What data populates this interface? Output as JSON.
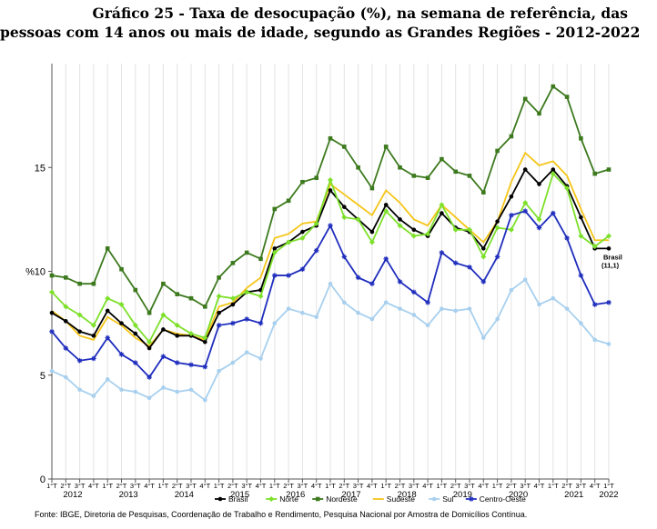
{
  "title_line1": "Gráfico 25 - Taxa de desocupação (%), na semana de referência, das",
  "title_line2": "pessoas com 14 anos ou mais de idade, segundo as Grandes Regiões - 2012-2022",
  "source": "Fonte: IBGE, Diretoria de Pesquisas, Coordenação de Trabalho e Rendimento, Pesquisa Nacional por Amostra de Domicílios Contínua.",
  "chart_data": {
    "type": "line",
    "ylabel": "%",
    "ylim": [
      0,
      20
    ],
    "yticks": [
      0,
      5,
      10,
      15
    ],
    "grid": "vertical",
    "legend_position": "bottom",
    "quarter_labels": [
      "1°T",
      "2°T",
      "3°T",
      "4°T"
    ],
    "years": [
      "2012",
      "2013",
      "2014",
      "2015",
      "2016",
      "2017",
      "2018",
      "2019",
      "2020",
      "2021",
      "2022"
    ],
    "annotation": {
      "line1": "Brasil",
      "line2": "(11,1)",
      "series": "Brasil",
      "index": 40
    },
    "series": [
      {
        "name": "Nordeste",
        "color": "#3d7a1e",
        "marker": "square",
        "values": [
          9.8,
          9.7,
          9.4,
          9.4,
          11.1,
          10.1,
          9.1,
          8.0,
          9.4,
          8.9,
          8.7,
          8.3,
          9.7,
          10.4,
          10.9,
          10.6,
          13.0,
          13.4,
          14.3,
          14.5,
          16.4,
          16.0,
          15.0,
          14.0,
          16.0,
          15.0,
          14.6,
          14.5,
          15.4,
          14.8,
          14.6,
          13.8,
          15.8,
          16.5,
          18.3,
          17.6,
          18.9,
          18.4,
          16.4,
          14.7,
          14.9
        ]
      },
      {
        "name": "Sudeste",
        "color": "#f5c518",
        "marker": "none",
        "values": [
          8.1,
          7.6,
          6.9,
          6.7,
          7.8,
          7.4,
          6.8,
          6.4,
          7.2,
          7.0,
          6.9,
          6.7,
          8.3,
          8.5,
          9.2,
          9.7,
          11.6,
          11.8,
          12.3,
          12.4,
          14.2,
          13.7,
          13.2,
          12.7,
          13.9,
          13.3,
          12.5,
          12.2,
          13.2,
          12.6,
          12.0,
          11.4,
          12.4,
          14.3,
          15.7,
          15.1,
          15.3,
          14.6,
          13.0,
          11.5,
          11.5
        ]
      },
      {
        "name": "Brasil",
        "color": "#000000",
        "marker": "circle",
        "values": [
          8.0,
          7.6,
          7.1,
          6.9,
          8.1,
          7.5,
          7.0,
          6.3,
          7.2,
          6.9,
          6.9,
          6.6,
          8.0,
          8.4,
          9.0,
          9.1,
          11.1,
          11.4,
          11.9,
          12.2,
          13.9,
          13.1,
          12.5,
          11.9,
          13.2,
          12.5,
          12.0,
          11.7,
          12.8,
          12.1,
          11.9,
          11.1,
          12.4,
          13.6,
          14.9,
          14.2,
          14.9,
          14.1,
          12.6,
          11.1,
          11.1
        ]
      },
      {
        "name": "Norte",
        "color": "#7de02a",
        "marker": "diamond",
        "values": [
          9.0,
          8.3,
          7.9,
          7.4,
          8.7,
          8.4,
          7.4,
          6.6,
          7.9,
          7.4,
          7.0,
          6.8,
          8.8,
          8.7,
          9.0,
          8.8,
          10.9,
          11.4,
          11.6,
          12.3,
          14.4,
          12.6,
          12.5,
          11.4,
          12.9,
          12.2,
          11.7,
          11.8,
          13.2,
          12.0,
          12.0,
          10.7,
          12.1,
          12.0,
          13.3,
          12.5,
          14.7,
          14.0,
          11.7,
          11.2,
          11.7
        ]
      },
      {
        "name": "Centro-Oeste",
        "color": "#1f2dbd",
        "marker": "asterisk",
        "values": [
          7.1,
          6.3,
          5.7,
          5.8,
          6.8,
          6.0,
          5.6,
          4.9,
          5.9,
          5.6,
          5.5,
          5.4,
          7.4,
          7.5,
          7.7,
          7.5,
          9.8,
          9.8,
          10.1,
          11.0,
          12.2,
          10.7,
          9.7,
          9.4,
          10.6,
          9.5,
          9.0,
          8.5,
          10.9,
          10.4,
          10.2,
          9.5,
          10.7,
          12.7,
          12.9,
          12.1,
          12.8,
          11.6,
          9.8,
          8.4,
          8.5
        ]
      },
      {
        "name": "Sul",
        "color": "#a8d0ee",
        "marker": "circle",
        "values": [
          5.2,
          4.9,
          4.3,
          4.0,
          4.8,
          4.3,
          4.2,
          3.9,
          4.4,
          4.2,
          4.3,
          3.8,
          5.2,
          5.6,
          6.1,
          5.8,
          7.5,
          8.2,
          8.0,
          7.8,
          9.4,
          8.5,
          8.0,
          7.7,
          8.5,
          8.2,
          7.9,
          7.4,
          8.2,
          8.1,
          8.2,
          6.8,
          7.7,
          9.1,
          9.6,
          8.4,
          8.7,
          8.2,
          7.5,
          6.7,
          6.5
        ]
      }
    ]
  }
}
